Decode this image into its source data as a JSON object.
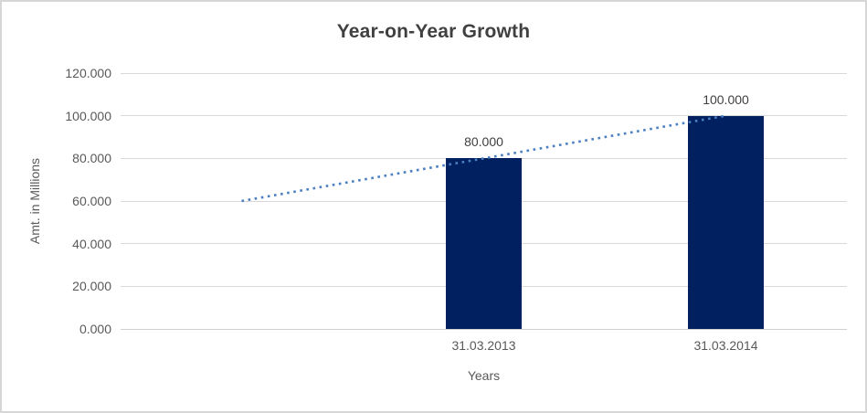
{
  "chart_data": {
    "type": "bar",
    "title": "Year-on-Year Growth",
    "xlabel": "Years",
    "ylabel": "Amt. in Millions",
    "categories": [
      "",
      "31.03.2013",
      "31.03.2014"
    ],
    "series": [
      {
        "name": "Amt. in Millions",
        "values": [
          null,
          80,
          100
        ]
      }
    ],
    "data_labels": [
      null,
      "80.000",
      "100.000"
    ],
    "ylim": [
      0,
      120
    ],
    "yticks": [
      0,
      20,
      40,
      60,
      80,
      100,
      120
    ],
    "ytick_labels": [
      "0.000",
      "20.000",
      "40.000",
      "60.000",
      "80.000",
      "100.000",
      "120.000"
    ],
    "grid": true,
    "legend": false,
    "bar_color": "#002060",
    "trendline": {
      "type": "linear",
      "style": "dotted",
      "color": "#4a7fc1",
      "points": [
        {
          "slot": 0,
          "value": 60
        },
        {
          "slot": 2,
          "value": 100
        }
      ]
    },
    "colors": {
      "gridline": "#d9d9d9",
      "axis_line": "#cfcfcf",
      "tick_label": "#595959",
      "title": "#404040",
      "data_label": "#404040",
      "frame_border": "#d6d6d6",
      "background": "#ffffff"
    }
  }
}
